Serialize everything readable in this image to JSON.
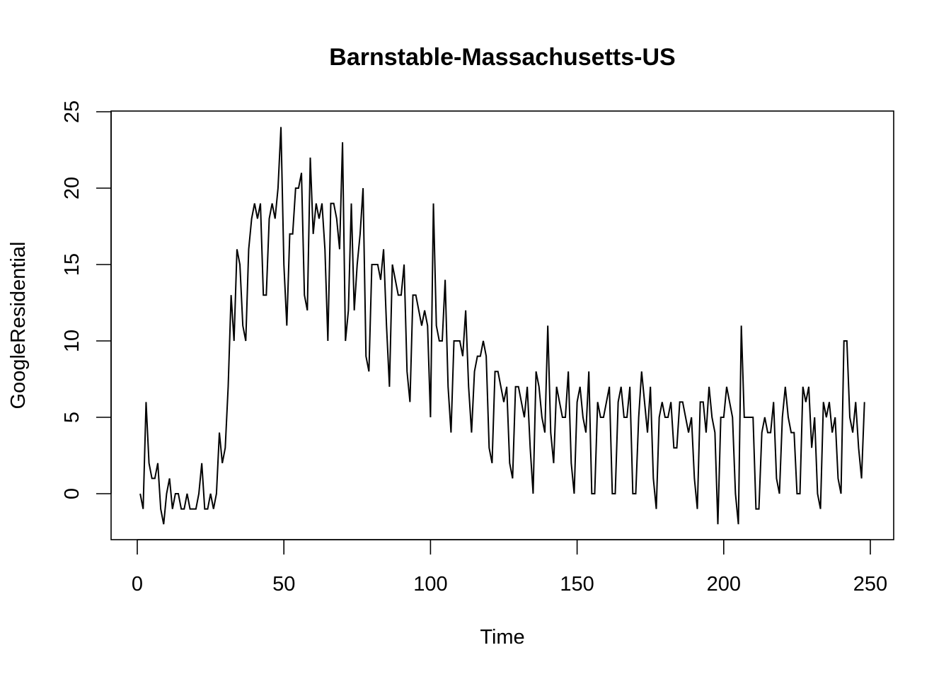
{
  "chart_data": {
    "type": "line",
    "title": "Barnstable-Massachusetts-US",
    "xlabel": "Time",
    "ylabel": "GoogleResidential",
    "xlim": [
      0,
      250
    ],
    "ylim": [
      -2,
      25
    ],
    "x_ticks": [
      0,
      50,
      100,
      150,
      200,
      250
    ],
    "y_ticks": [
      0,
      5,
      10,
      15,
      20,
      25
    ],
    "grid": false,
    "line_color": "#000000",
    "x_start": 1,
    "values": [
      0,
      -1,
      6,
      2,
      1,
      1,
      2,
      -1,
      -2,
      0,
      1,
      -1,
      0,
      0,
      -1,
      -1,
      0,
      -1,
      -1,
      -1,
      0,
      2,
      -1,
      -1,
      0,
      -1,
      0,
      4,
      2,
      3,
      7,
      13,
      10,
      16,
      15,
      11,
      10,
      16,
      18,
      19,
      18,
      19,
      13,
      13,
      18,
      19,
      18,
      20,
      24,
      15,
      11,
      17,
      17,
      20,
      20,
      21,
      13,
      12,
      22,
      17,
      19,
      18,
      19,
      16,
      10,
      19,
      19,
      18,
      16,
      23,
      10,
      12,
      19,
      12,
      15,
      17,
      20,
      9,
      8,
      15,
      15,
      15,
      14,
      16,
      11,
      7,
      15,
      14,
      13,
      13,
      15,
      8,
      6,
      13,
      13,
      12,
      11,
      12,
      11,
      5,
      19,
      11,
      10,
      10,
      14,
      7,
      4,
      10,
      10,
      10,
      9,
      12,
      7,
      4,
      8,
      9,
      9,
      10,
      9,
      3,
      2,
      8,
      8,
      7,
      6,
      7,
      2,
      1,
      7,
      7,
      6,
      5,
      7,
      3,
      0,
      8,
      7,
      5,
      4,
      11,
      4,
      2,
      7,
      6,
      5,
      5,
      8,
      2,
      0,
      6,
      7,
      5,
      4,
      8,
      0,
      0,
      6,
      5,
      5,
      6,
      7,
      0,
      0,
      6,
      7,
      5,
      5,
      7,
      0,
      0,
      5,
      8,
      6,
      4,
      7,
      1,
      -1,
      5,
      6,
      5,
      5,
      6,
      3,
      3,
      6,
      6,
      5,
      4,
      5,
      1,
      -1,
      6,
      6,
      4,
      7,
      5,
      4,
      -2,
      5,
      5,
      7,
      6,
      5,
      0,
      -2,
      11,
      5,
      5,
      5,
      5,
      -1,
      -1,
      4,
      5,
      4,
      4,
      6,
      1,
      0,
      5,
      7,
      5,
      4,
      4,
      0,
      0,
      7,
      6,
      7,
      3,
      5,
      0,
      -1,
      6,
      5,
      6,
      4,
      5,
      1,
      0,
      10,
      10,
      5,
      4,
      6,
      3,
      1,
      6
    ]
  }
}
